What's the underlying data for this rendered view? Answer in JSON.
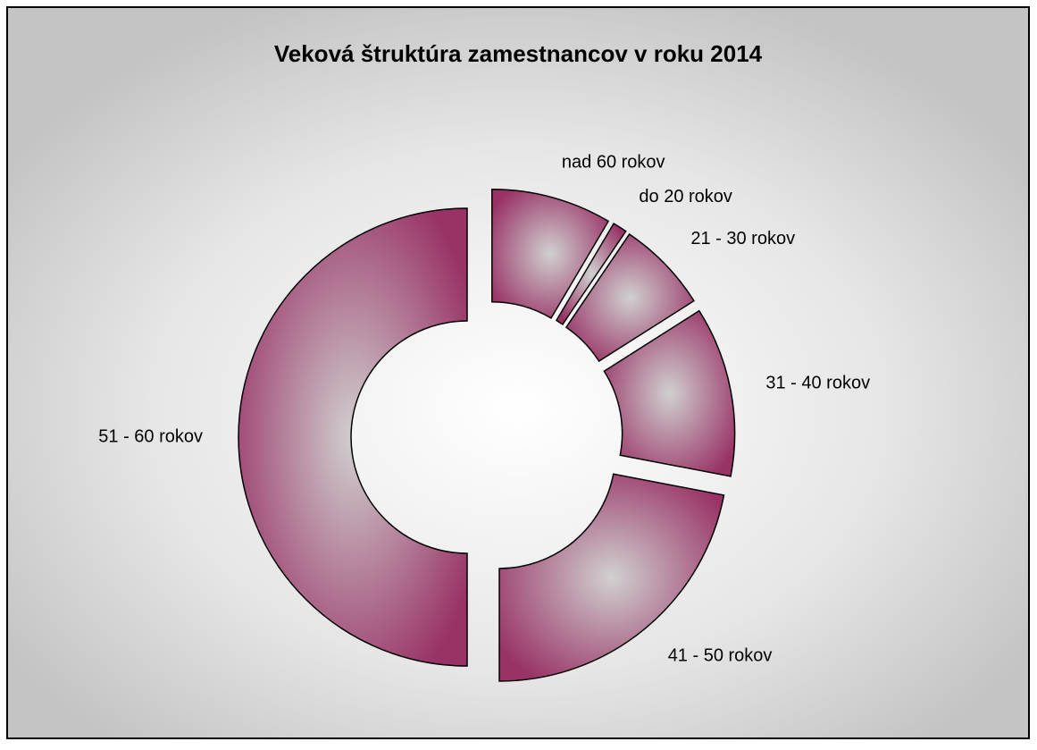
{
  "chart_data": {
    "type": "donut",
    "title": "Veková štruktúra zamestnancov v roku 2014",
    "categories": [
      "nad 60 rokov",
      "do 20 rokov",
      "21 - 30 rokov",
      "31 - 40 rokov",
      "41 - 50 rokov",
      "51 - 60 rokov"
    ],
    "values": [
      8.5,
      1,
      6.5,
      12,
      22,
      50
    ],
    "color": "#993366"
  }
}
